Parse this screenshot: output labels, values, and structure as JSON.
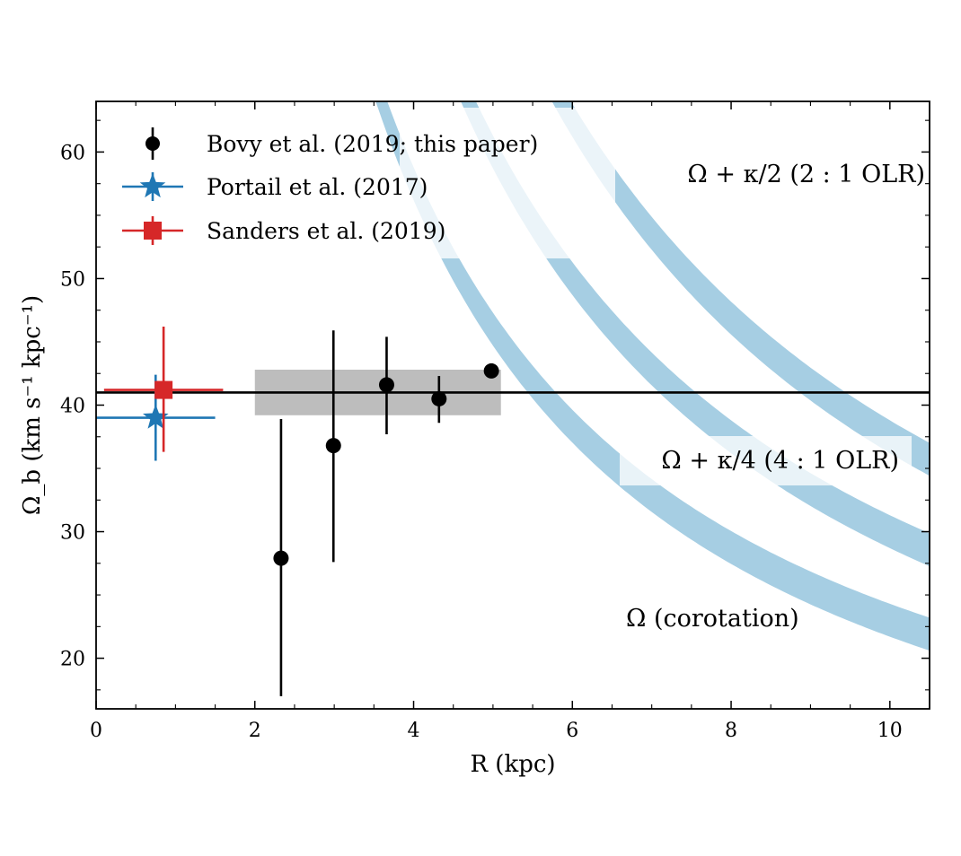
{
  "chart_data": {
    "type": "scatter",
    "xlabel": "R (kpc)",
    "ylabel": "Ω_b (km s⁻¹ kpc⁻¹)",
    "xlim": [
      0,
      10.5
    ],
    "ylim": [
      16,
      64
    ],
    "x_ticks": [
      0,
      2,
      4,
      6,
      8,
      10
    ],
    "y_ticks": [
      20,
      30,
      40,
      50,
      60
    ],
    "x_tick_labels": [
      "0",
      "2",
      "4",
      "6",
      "8",
      "10"
    ],
    "y_tick_labels": [
      "20",
      "30",
      "40",
      "50",
      "60"
    ],
    "legend_position": "top-left",
    "series": [
      {
        "name": "Bovy et al. (2019; this paper)",
        "color": "#000000",
        "marker": "circle",
        "points": [
          {
            "x": 2.33,
            "y": 27.9,
            "yerr_low": 17.0,
            "yerr_high": 38.9
          },
          {
            "x": 2.99,
            "y": 36.8,
            "yerr_low": 27.6,
            "yerr_high": 45.9
          },
          {
            "x": 3.66,
            "y": 41.6,
            "yerr_low": 37.7,
            "yerr_high": 45.4
          },
          {
            "x": 4.32,
            "y": 40.5,
            "yerr_low": 38.6,
            "yerr_high": 42.3
          },
          {
            "x": 4.98,
            "y": 42.7,
            "yerr_low": 42.7,
            "yerr_high": 42.7
          }
        ]
      },
      {
        "name": "Portail et al. (2017)",
        "color": "#1f77b4",
        "marker": "star",
        "points": [
          {
            "x": 0.75,
            "y": 39.0,
            "xerr_low": 0.0,
            "xerr_high": 1.5,
            "yerr_low": 35.6,
            "yerr_high": 42.4
          }
        ]
      },
      {
        "name": "Sanders et al. (2019)",
        "color": "#d62728",
        "marker": "square",
        "points": [
          {
            "x": 0.85,
            "y": 41.2,
            "xerr_low": 0.1,
            "xerr_high": 1.6,
            "yerr_low": 36.3,
            "yerr_high": 46.2
          }
        ]
      }
    ],
    "horizontal_line": {
      "y": 41.0,
      "color": "#000000"
    },
    "shaded_band": {
      "x": [
        2.0,
        5.1
      ],
      "y": [
        39.2,
        42.8
      ],
      "color": "#bdbdbd"
    },
    "curves": [
      {
        "label": "Ω (corotation)",
        "color": "#a6cee3",
        "center": "a=230",
        "half_width": 0.5
      },
      {
        "label": "Ω + κ/4 (4 : 1 OLR)",
        "color": "#a6cee3",
        "center": "a=300",
        "half_width": 0.5
      },
      {
        "label": "Ω + κ/2 (2 : 1 OLR)",
        "color": "#a6cee3",
        "center": "a=375",
        "half_width": 0.5
      }
    ]
  }
}
